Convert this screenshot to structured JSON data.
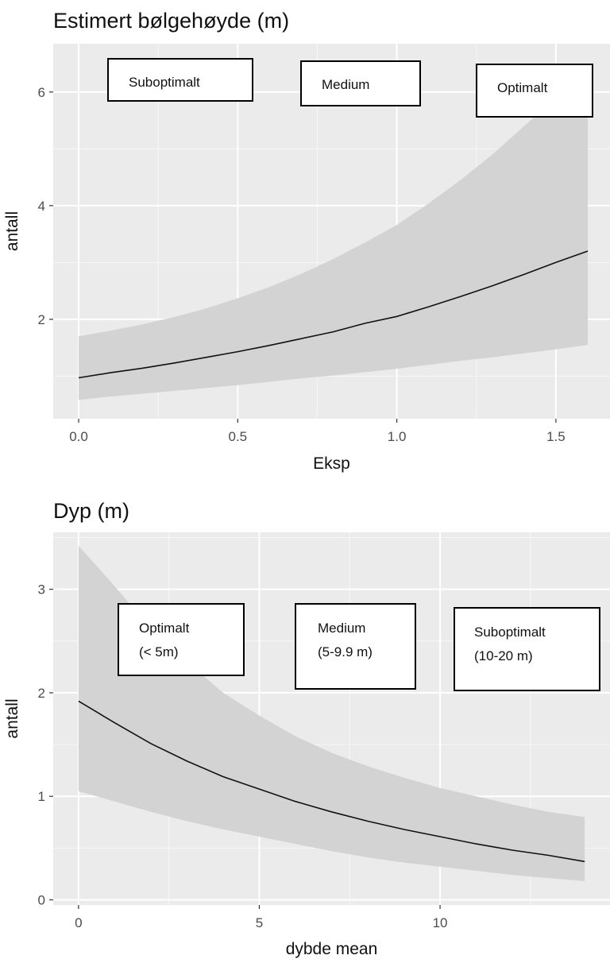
{
  "chart_data": [
    {
      "type": "line",
      "title": "Estimert bølgehøyde (m)",
      "xlabel": "Eksp",
      "ylabel": "antall",
      "xlim": [
        -0.08,
        1.67
      ],
      "ylim": [
        0.25,
        6.85
      ],
      "x_ticks": [
        0.0,
        0.5,
        1.0,
        1.5
      ],
      "x_tick_labels": [
        "0.0",
        "0.5",
        "1.0",
        "1.5"
      ],
      "y_ticks": [
        2,
        4,
        6
      ],
      "y_tick_labels": [
        "2",
        "4",
        "6"
      ],
      "grid": true,
      "series": [
        {
          "x": [
            0.0,
            0.1,
            0.2,
            0.3,
            0.4,
            0.5,
            0.6,
            0.7,
            0.8,
            0.9,
            1.0,
            1.1,
            1.2,
            1.3,
            1.4,
            1.5,
            1.6
          ],
          "y": [
            0.97,
            1.06,
            1.14,
            1.23,
            1.33,
            1.43,
            1.54,
            1.66,
            1.78,
            1.93,
            2.05,
            2.22,
            2.4,
            2.59,
            2.79,
            3.0,
            3.2
          ],
          "lower": [
            0.58,
            0.64,
            0.69,
            0.74,
            0.79,
            0.84,
            0.9,
            0.96,
            1.01,
            1.07,
            1.13,
            1.2,
            1.27,
            1.33,
            1.4,
            1.47,
            1.55
          ],
          "upper": [
            1.7,
            1.8,
            1.91,
            2.04,
            2.19,
            2.37,
            2.57,
            2.8,
            3.06,
            3.35,
            3.66,
            4.04,
            4.45,
            4.9,
            5.4,
            5.9,
            6.3
          ]
        }
      ],
      "annotations": [
        {
          "lines": [
            "Suboptimalt"
          ]
        },
        {
          "lines": [
            "Medium"
          ]
        },
        {
          "lines": [
            "Optimalt"
          ]
        }
      ]
    },
    {
      "type": "line",
      "title": "Dyp (m)",
      "xlabel": "dybde mean",
      "ylabel": "antall",
      "xlim": [
        -0.7,
        14.7
      ],
      "ylim": [
        -0.05,
        3.55
      ],
      "x_ticks": [
        0,
        5,
        10
      ],
      "x_tick_labels": [
        "0",
        "5",
        "10"
      ],
      "y_ticks": [
        0,
        1,
        2,
        3
      ],
      "y_tick_labels": [
        "0",
        "1",
        "2",
        "3"
      ],
      "grid": true,
      "series": [
        {
          "x": [
            0,
            1,
            2,
            3,
            4,
            5,
            6,
            7,
            8,
            9,
            10,
            11,
            12,
            13,
            14
          ],
          "y": [
            1.92,
            1.71,
            1.51,
            1.34,
            1.19,
            1.07,
            0.95,
            0.85,
            0.76,
            0.68,
            0.61,
            0.54,
            0.48,
            0.43,
            0.37
          ],
          "lower": [
            1.05,
            0.95,
            0.85,
            0.76,
            0.68,
            0.61,
            0.54,
            0.47,
            0.41,
            0.36,
            0.32,
            0.28,
            0.24,
            0.21,
            0.18
          ],
          "upper": [
            3.42,
            3.03,
            2.62,
            2.3,
            2.0,
            1.78,
            1.58,
            1.42,
            1.29,
            1.18,
            1.08,
            1.0,
            0.92,
            0.85,
            0.8
          ]
        }
      ],
      "annotations": [
        {
          "lines": [
            "Optimalt",
            "(< 5m)"
          ]
        },
        {
          "lines": [
            "Medium",
            "(5-9.9 m)"
          ]
        },
        {
          "lines": [
            "Suboptimalt",
            "(10-20 m)"
          ]
        }
      ]
    }
  ]
}
